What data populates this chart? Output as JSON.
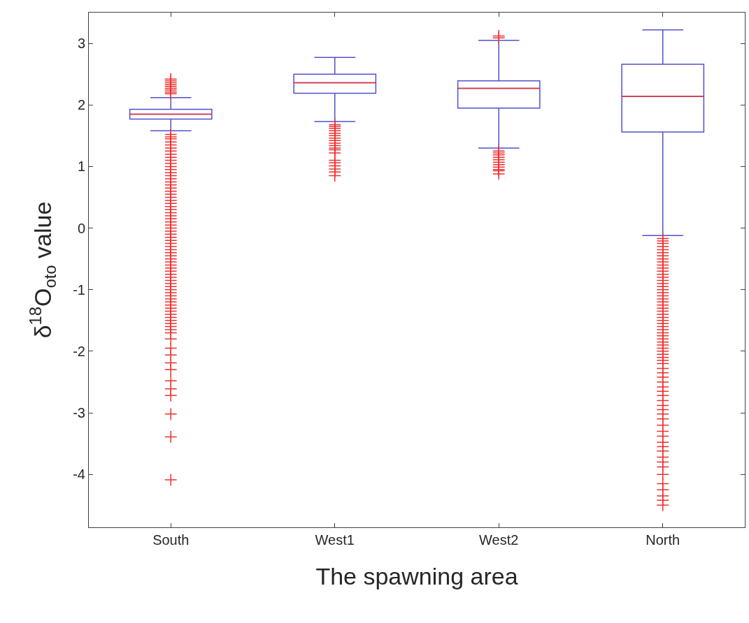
{
  "chart_data": {
    "type": "box",
    "xlabel": "The spawning area",
    "ylabel": "δ$^{18}$O$_{oto}$ value",
    "categories": [
      "South",
      "West1",
      "West2",
      "North"
    ],
    "ylim": [
      -4.86,
      3.5
    ],
    "yticks": [
      -4,
      -3,
      -2,
      -1,
      0,
      1,
      2,
      3
    ],
    "marker": "cross",
    "color": "#5050d0",
    "boxes": [
      {
        "low": 1.58,
        "q1": 1.77,
        "median": 1.85,
        "q3": 1.93,
        "high": 2.12,
        "outliers": [
          2.42,
          2.39,
          2.36,
          2.33,
          2.3,
          2.27,
          2.24,
          2.21,
          2.18,
          1.52,
          1.48,
          1.45,
          1.4,
          1.35,
          1.3,
          1.25,
          1.2,
          1.15,
          1.1,
          1.05,
          1.0,
          0.95,
          0.9,
          0.85,
          0.8,
          0.75,
          0.7,
          0.65,
          0.6,
          0.55,
          0.5,
          0.45,
          0.4,
          0.35,
          0.3,
          0.25,
          0.2,
          0.15,
          0.1,
          0.05,
          0.0,
          -0.05,
          -0.1,
          -0.15,
          -0.2,
          -0.25,
          -0.3,
          -0.35,
          -0.4,
          -0.45,
          -0.5,
          -0.55,
          -0.6,
          -0.65,
          -0.7,
          -0.75,
          -0.8,
          -0.85,
          -0.9,
          -0.95,
          -1.0,
          -1.05,
          -1.1,
          -1.15,
          -1.2,
          -1.25,
          -1.3,
          -1.35,
          -1.4,
          -1.45,
          -1.5,
          -1.55,
          -1.6,
          -1.65,
          -1.7,
          -1.8,
          -1.95,
          -2.06,
          -2.19,
          -2.3,
          -2.48,
          -2.61,
          -2.72,
          -3.02,
          -3.39,
          -4.09
        ]
      },
      {
        "low": 1.73,
        "q1": 2.19,
        "median": 2.36,
        "q3": 2.5,
        "high": 2.77,
        "outliers": [
          1.68,
          1.65,
          1.62,
          1.58,
          1.54,
          1.5,
          1.46,
          1.42,
          1.38,
          1.34,
          1.3,
          1.27,
          1.22,
          1.1,
          1.06,
          1.01,
          0.96,
          0.91,
          0.85
        ]
      },
      {
        "low": 1.3,
        "q1": 1.95,
        "median": 2.27,
        "q3": 2.39,
        "high": 3.05,
        "outliers": [
          3.09,
          3.12,
          1.25,
          1.22,
          1.19,
          1.15,
          1.11,
          1.07,
          1.03,
          0.99,
          0.95,
          0.93,
          0.88
        ]
      },
      {
        "low": -0.12,
        "q1": 1.56,
        "median": 2.14,
        "q3": 2.66,
        "high": 3.22,
        "outliers": [
          -0.17,
          -0.21,
          -0.25,
          -0.3,
          -0.35,
          -0.4,
          -0.45,
          -0.5,
          -0.55,
          -0.6,
          -0.65,
          -0.7,
          -0.75,
          -0.8,
          -0.85,
          -0.9,
          -0.95,
          -1.0,
          -1.05,
          -1.1,
          -1.15,
          -1.2,
          -1.25,
          -1.3,
          -1.35,
          -1.4,
          -1.45,
          -1.5,
          -1.55,
          -1.6,
          -1.65,
          -1.7,
          -1.75,
          -1.8,
          -1.85,
          -1.9,
          -1.95,
          -2.0,
          -2.05,
          -2.1,
          -2.15,
          -2.2,
          -2.28,
          -2.35,
          -2.42,
          -2.5,
          -2.58,
          -2.65,
          -2.72,
          -2.8,
          -2.88,
          -2.95,
          -3.02,
          -3.1,
          -3.2,
          -3.3,
          -3.38,
          -3.48,
          -3.55,
          -3.62,
          -3.72,
          -3.8,
          -3.88,
          -4.0,
          -4.15,
          -4.25,
          -4.35,
          -4.42,
          -4.5
        ]
      }
    ]
  }
}
